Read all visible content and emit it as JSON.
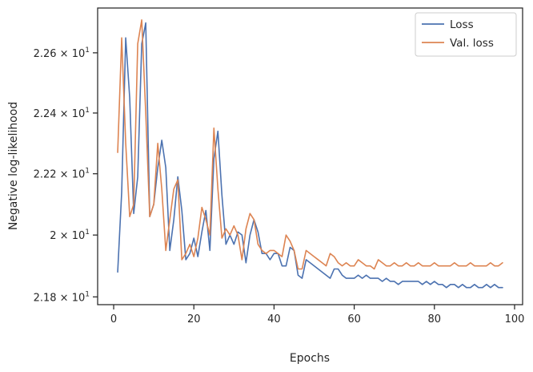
{
  "chart_data": {
    "type": "line",
    "xlabel": "Epochs",
    "ylabel": "Negative log-likelihood",
    "xlim": [
      -4,
      102
    ],
    "ylim": [
      21.775,
      22.75
    ],
    "y_scale": "log",
    "grid": false,
    "legend_position": "top-right",
    "x_ticks": [
      0,
      20,
      40,
      60,
      80,
      100
    ],
    "x_tick_labels": [
      "0",
      "20",
      "40",
      "60",
      "80",
      "100"
    ],
    "y_ticks": [
      21.8,
      22.0,
      22.2,
      22.4,
      22.6
    ],
    "y_tick_labels": [
      {
        "mantissa": "2.18",
        "sep": " × ",
        "base": "10",
        "exp": "1"
      },
      {
        "mantissa": "2",
        "sep": " × ",
        "base": "10",
        "exp": "1"
      },
      {
        "mantissa": "2.22",
        "sep": " × ",
        "base": "10",
        "exp": "1"
      },
      {
        "mantissa": "2.24",
        "sep": " × ",
        "base": "10",
        "exp": "1"
      },
      {
        "mantissa": "2.26",
        "sep": " × ",
        "base": "10",
        "exp": "1"
      }
    ],
    "x": [
      1,
      2,
      3,
      4,
      5,
      6,
      7,
      8,
      9,
      10,
      11,
      12,
      13,
      14,
      15,
      16,
      17,
      18,
      19,
      20,
      21,
      22,
      23,
      24,
      25,
      26,
      27,
      28,
      29,
      30,
      31,
      32,
      33,
      34,
      35,
      36,
      37,
      38,
      39,
      40,
      41,
      42,
      43,
      44,
      45,
      46,
      47,
      48,
      49,
      50,
      51,
      52,
      53,
      54,
      55,
      56,
      57,
      58,
      59,
      60,
      61,
      62,
      63,
      64,
      65,
      66,
      67,
      68,
      69,
      70,
      71,
      72,
      73,
      74,
      75,
      76,
      77,
      78,
      79,
      80,
      81,
      82,
      83,
      84,
      85,
      86,
      87,
      88,
      89,
      90,
      91,
      92,
      93,
      94,
      95,
      96,
      97
    ],
    "series": [
      {
        "name": "Loss",
        "color": "#4c72b0",
        "values": [
          21.88,
          22.14,
          22.65,
          22.45,
          22.07,
          22.19,
          22.63,
          22.7,
          22.06,
          22.1,
          22.22,
          22.31,
          22.22,
          21.95,
          22.05,
          22.19,
          22.08,
          21.92,
          21.94,
          21.99,
          21.93,
          22.01,
          22.08,
          21.95,
          22.25,
          22.34,
          22.13,
          21.97,
          22.0,
          21.97,
          22.01,
          22.0,
          21.91,
          22.0,
          22.05,
          22.01,
          21.94,
          21.94,
          21.92,
          21.94,
          21.94,
          21.9,
          21.9,
          21.96,
          21.95,
          21.87,
          21.86,
          21.92,
          21.91,
          21.9,
          21.89,
          21.88,
          21.87,
          21.86,
          21.89,
          21.89,
          21.87,
          21.86,
          21.86,
          21.86,
          21.87,
          21.86,
          21.87,
          21.86,
          21.86,
          21.86,
          21.85,
          21.86,
          21.85,
          21.85,
          21.84,
          21.85,
          21.85,
          21.85,
          21.85,
          21.85,
          21.84,
          21.85,
          21.84,
          21.85,
          21.84,
          21.84,
          21.83,
          21.84,
          21.84,
          21.83,
          21.84,
          21.83,
          21.83,
          21.84,
          21.83,
          21.83,
          21.84,
          21.83,
          21.84,
          21.83,
          21.83
        ]
      },
      {
        "name": "Val. loss",
        "color": "#dd8452",
        "values": [
          22.27,
          22.65,
          22.3,
          22.06,
          22.1,
          22.63,
          22.71,
          22.4,
          22.06,
          22.1,
          22.3,
          22.15,
          21.95,
          22.05,
          22.15,
          22.18,
          21.92,
          21.94,
          21.97,
          21.93,
          21.99,
          22.09,
          22.05,
          22.0,
          22.35,
          22.15,
          21.99,
          22.02,
          22.0,
          22.03,
          22.0,
          21.92,
          22.02,
          22.07,
          22.05,
          21.97,
          21.95,
          21.94,
          21.95,
          21.95,
          21.94,
          21.93,
          22.0,
          21.98,
          21.95,
          21.89,
          21.89,
          21.95,
          21.94,
          21.93,
          21.92,
          21.91,
          21.9,
          21.94,
          21.93,
          21.91,
          21.9,
          21.91,
          21.9,
          21.9,
          21.92,
          21.91,
          21.9,
          21.9,
          21.89,
          21.92,
          21.91,
          21.9,
          21.9,
          21.91,
          21.9,
          21.9,
          21.91,
          21.9,
          21.9,
          21.91,
          21.9,
          21.9,
          21.9,
          21.91,
          21.9,
          21.9,
          21.9,
          21.9,
          21.91,
          21.9,
          21.9,
          21.9,
          21.91,
          21.9,
          21.9,
          21.9,
          21.9,
          21.91,
          21.9,
          21.9,
          21.91
        ]
      }
    ]
  }
}
